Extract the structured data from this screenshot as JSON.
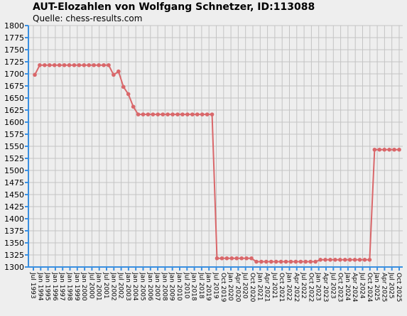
{
  "chart_data": {
    "type": "line",
    "title": "AUT-Elozahlen von Wolfgang Schnetzer, ID:113088",
    "subtitle": "Quelle: chess-results.com",
    "xlabel": "",
    "ylabel": "",
    "ylim": [
      1300,
      1800
    ],
    "y_ticks": [
      1300,
      1325,
      1350,
      1375,
      1400,
      1425,
      1450,
      1475,
      1500,
      1525,
      1550,
      1575,
      1600,
      1625,
      1650,
      1675,
      1700,
      1725,
      1750,
      1775,
      1800
    ],
    "x_ticks": [
      "Jul 1993",
      "Jan 1994",
      "Jan 1995",
      "Jan 1996",
      "Jan 1997",
      "Jan 1998",
      "Jan 1999",
      "Jan 2000",
      "Jul 2000",
      "Jan 2001",
      "Jul 2001",
      "Jan 2002",
      "Jul 2002",
      "Jan 2003",
      "Jan 2004",
      "Jan 2005",
      "Jan 2006",
      "Jan 2007",
      "Jan 2008",
      "Jan 2009",
      "Jan 2010",
      "Jul 2010",
      "Jan 2018",
      "Jul 2018",
      "Jan 2019",
      "Jul 2019",
      "Oct 2019",
      "Jan 2020",
      "Apr 2020",
      "Jul 2020",
      "Oct 2020",
      "Jan 2021",
      "Apr 2021",
      "Jul 2021",
      "Oct 2021",
      "Jan 2022",
      "Apr 2022",
      "Jul 2022",
      "Oct 2022",
      "Jan 2023",
      "Apr 2023",
      "Jul 2023",
      "Oct 2023",
      "Jan 2024",
      "Apr 2024",
      "Jul 2024",
      "Oct 2024",
      "Jan 2025",
      "Apr 2025",
      "Jul 2025",
      "Oct 2025"
    ],
    "grid": true,
    "series": [
      {
        "name": "",
        "color": "#d9676a",
        "values": [
          1698,
          1718,
          1718,
          1718,
          1718,
          1718,
          1718,
          1718,
          1718,
          1718,
          1718,
          1718,
          1718,
          1718,
          1718,
          1718,
          1698,
          1705,
          1673,
          1658,
          1632,
          1616,
          1616,
          1616,
          1616,
          1616,
          1616,
          1616,
          1616,
          1616,
          1616,
          1616,
          1616,
          1616,
          1616,
          1616,
          1616,
          1318,
          1318,
          1318,
          1318,
          1318,
          1318,
          1318,
          1318,
          1311,
          1311,
          1311,
          1311,
          1311,
          1311,
          1311,
          1311,
          1311,
          1311,
          1311,
          1311,
          1311,
          1315,
          1315,
          1315,
          1315,
          1315,
          1315,
          1315,
          1315,
          1315,
          1315,
          1315,
          1543,
          1543,
          1543,
          1543,
          1543,
          1543
        ]
      }
    ]
  }
}
